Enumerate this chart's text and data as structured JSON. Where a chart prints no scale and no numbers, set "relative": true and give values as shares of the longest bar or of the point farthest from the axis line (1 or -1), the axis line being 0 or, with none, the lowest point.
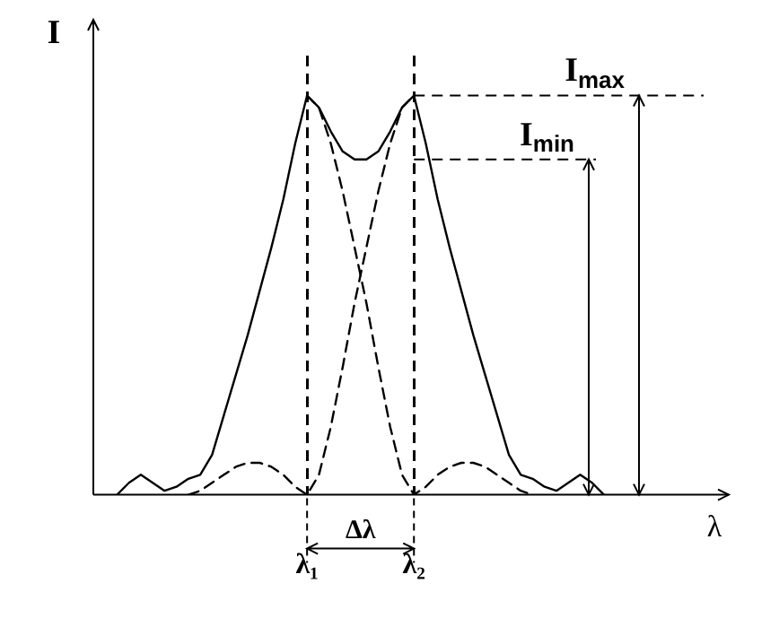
{
  "chart_data": {
    "type": "line",
    "relative": true,
    "ylabel": "I",
    "xlabel": "λ",
    "marker": "none",
    "tick_labels": "x",
    "grid": "x",
    "categories": [
      null,
      null,
      null,
      null,
      null,
      null,
      null,
      null,
      null,
      null,
      null,
      null,
      null,
      null,
      null,
      null,
      null,
      null,
      "λ₁",
      null,
      null,
      null,
      null,
      null,
      null,
      null,
      null,
      "λ₂",
      null,
      null,
      null,
      null,
      null,
      null,
      null,
      null,
      null,
      null,
      null,
      null,
      null,
      null,
      null,
      null,
      null,
      null,
      null,
      null,
      null,
      null,
      null,
      null,
      null
    ],
    "series": [
      {
        "color": "#000000",
        "line_style": "solid",
        "values": [
          null,
          null,
          0,
          0.03,
          0.05,
          0.03,
          0.01,
          0.02,
          0.04,
          0.05,
          0.1,
          0.2,
          0.3,
          0.4,
          0.51,
          0.62,
          0.74,
          0.88,
          1,
          0.97,
          0.91,
          0.86,
          0.84,
          0.84,
          0.86,
          0.91,
          0.97,
          1,
          0.88,
          0.74,
          0.62,
          0.51,
          0.4,
          0.3,
          0.2,
          0.1,
          0.05,
          0.04,
          0.02,
          0.01,
          0.03,
          0.05,
          0.03,
          0,
          null,
          null,
          null,
          null,
          null,
          null,
          null,
          null,
          null
        ]
      },
      {
        "color": "#000000",
        "line_style": "dashed",
        "values": [
          null,
          null,
          null,
          null,
          null,
          null,
          null,
          null,
          null,
          null,
          null,
          null,
          null,
          null,
          null,
          null,
          null,
          null,
          1,
          0.97,
          0.88,
          0.76,
          0.62,
          0.48,
          0.32,
          0.17,
          0.05,
          0,
          0.02,
          0.05,
          0.07,
          0.08,
          0.08,
          0.07,
          0.05,
          0.03,
          0.01,
          0,
          null,
          null,
          null,
          null,
          null,
          null,
          null,
          null,
          null,
          null,
          null,
          null,
          null,
          null,
          null
        ]
      },
      {
        "color": "#000000",
        "line_style": "dashed",
        "values": [
          null,
          null,
          null,
          null,
          null,
          null,
          null,
          null,
          0,
          0.01,
          0.03,
          0.05,
          0.07,
          0.08,
          0.08,
          0.07,
          0.05,
          0.02,
          0,
          0.05,
          0.17,
          0.32,
          0.48,
          0.62,
          0.76,
          0.88,
          0.97,
          1,
          null,
          null,
          null,
          null,
          null,
          null,
          null,
          null,
          null,
          null,
          null,
          null,
          null,
          null,
          null,
          null,
          null,
          null,
          null,
          null,
          null,
          null,
          null,
          null,
          null
        ]
      }
    ],
    "ref_lines": [
      {
        "axis": "y",
        "value": 1,
        "label": "I$_{max}$",
        "line_style": "dashed"
      },
      {
        "axis": "y",
        "value": 0.84,
        "label": "I$_{min}$",
        "line_style": "dashed"
      }
    ],
    "annotations": [
      "Δλ"
    ]
  }
}
